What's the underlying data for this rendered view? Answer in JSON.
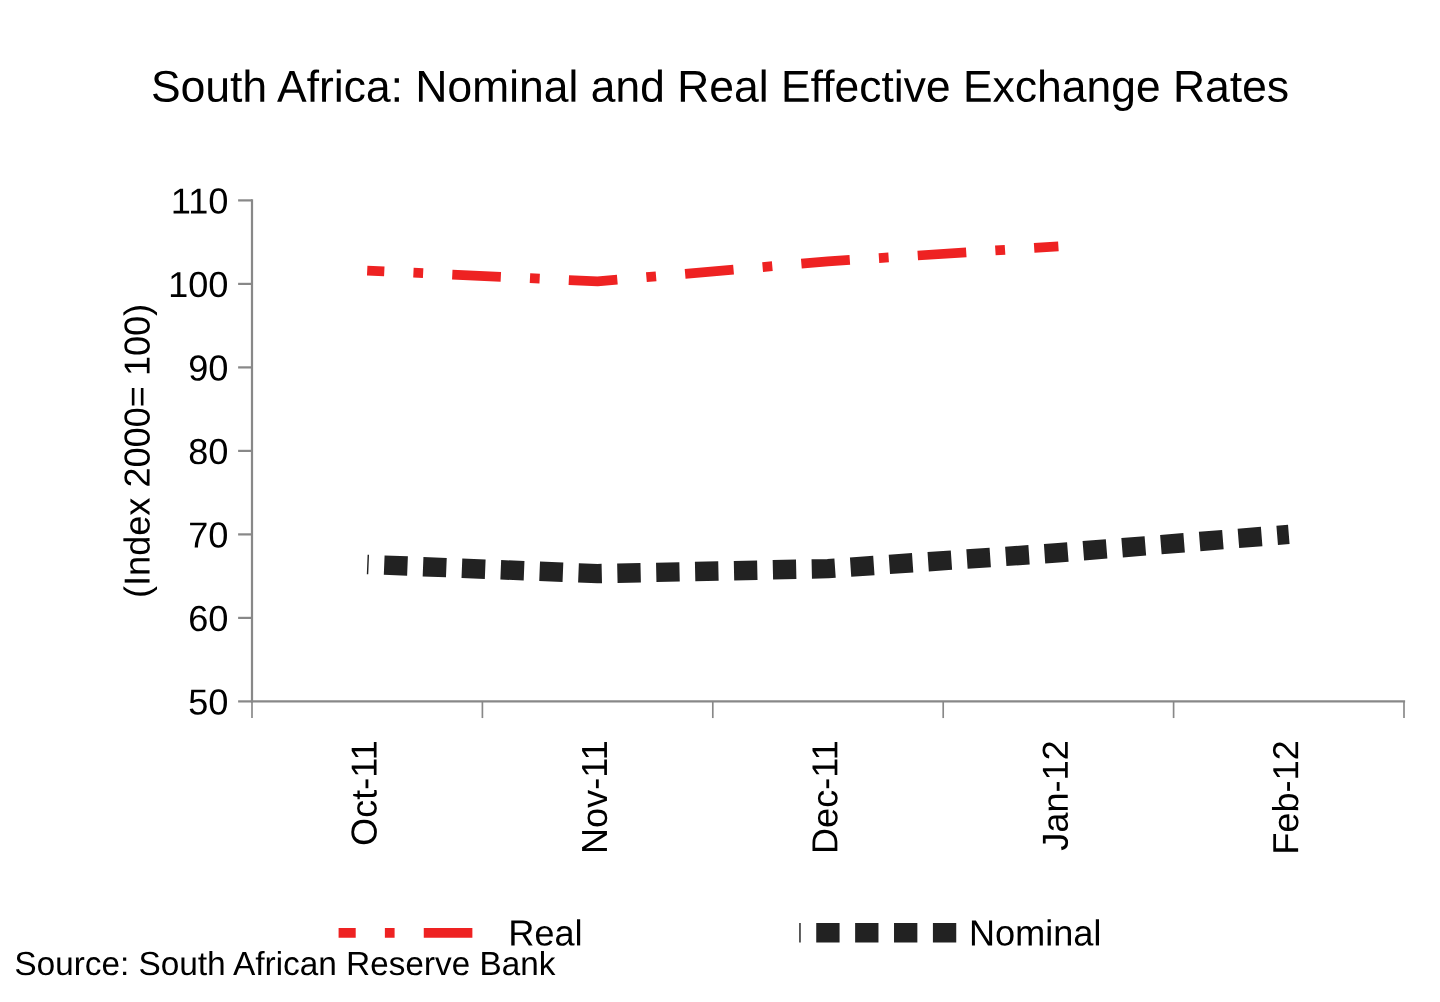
{
  "chart_data": {
    "type": "line",
    "title": "South Africa: Nominal and Real Effective Exchange Rates",
    "ylabel": "(Index 2000= 100)",
    "categories": [
      "Oct-11",
      "Nov-11",
      "Dec-11",
      "Jan-12",
      "Feb-12"
    ],
    "series": [
      {
        "name": "Real",
        "color": "#ee2222",
        "values": [
          101.6,
          100.3,
          102.7,
          104.5,
          null
        ],
        "line_style": "dashdot"
      },
      {
        "name": "Nominal",
        "color": "#222222",
        "values": [
          66.4,
          65.3,
          65.9,
          67.8,
          70.0
        ],
        "line_style": "dotted"
      }
    ],
    "ylim": [
      50,
      110
    ],
    "yticks": [
      50,
      60,
      70,
      80,
      90,
      100,
      110
    ],
    "grid": false,
    "legend": "bottom",
    "marker": "none",
    "annotations": [
      "Source: South African Reserve Bank"
    ]
  }
}
